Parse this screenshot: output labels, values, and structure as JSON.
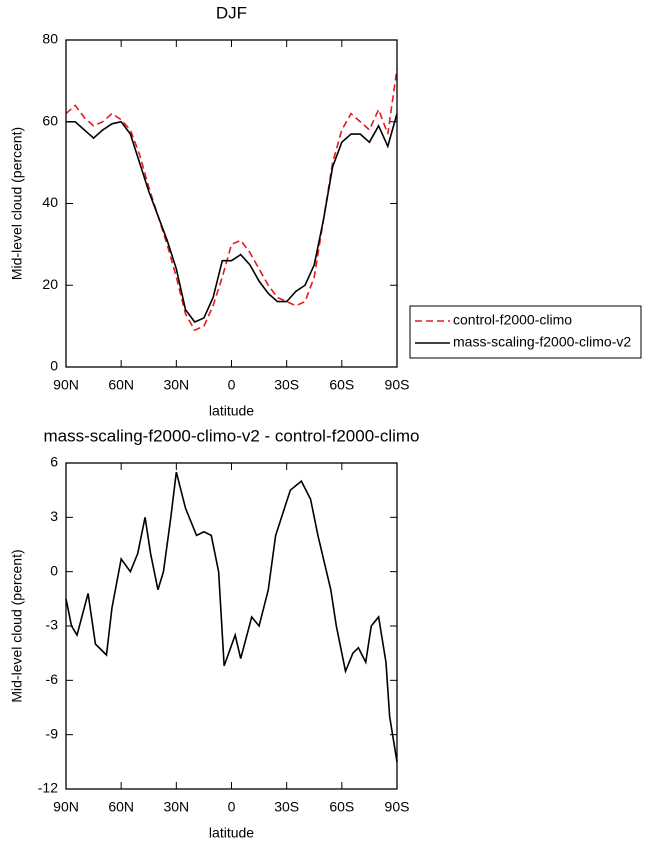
{
  "chart_data": [
    {
      "type": "line",
      "title": "DJF",
      "xlabel": "latitude",
      "ylabel": "Mid-level cloud (percent)",
      "x": [
        90,
        85,
        80,
        75,
        70,
        65,
        60,
        55,
        50,
        45,
        40,
        35,
        30,
        25,
        20,
        15,
        10,
        5,
        0,
        -5,
        -10,
        -15,
        -20,
        -25,
        -30,
        -35,
        -40,
        -45,
        -50,
        -55,
        -60,
        -65,
        -70,
        -75,
        -80,
        -85,
        -90
      ],
      "series": [
        {
          "name": "control-f2000-climo",
          "color": "#e41a1c",
          "style": "dashed",
          "values": [
            62,
            64,
            61,
            59,
            60,
            62,
            60.5,
            58,
            52,
            44,
            37,
            30,
            22,
            13,
            9,
            10,
            15,
            22,
            30,
            31,
            28,
            24,
            20,
            17,
            16,
            15,
            16,
            22,
            36,
            50,
            58,
            62,
            60,
            58,
            63,
            57,
            73
          ]
        },
        {
          "name": "mass-scaling-f2000-climo-v2",
          "color": "#000000",
          "style": "solid",
          "values": [
            60,
            60,
            58,
            56,
            58,
            59.5,
            60,
            57,
            50,
            43,
            37,
            31,
            24,
            14,
            11,
            12,
            17,
            26,
            26,
            27.5,
            25,
            21,
            18,
            16,
            16,
            18.5,
            20,
            25,
            36,
            49,
            55,
            57,
            57,
            55,
            59,
            54,
            62
          ]
        }
      ],
      "xlim": [
        90,
        -90
      ],
      "xticks": [
        {
          "value": 90,
          "label": "90N"
        },
        {
          "value": 60,
          "label": "60N"
        },
        {
          "value": 30,
          "label": "30N"
        },
        0,
        {
          "value": -30,
          "label": "30S"
        },
        {
          "value": -60,
          "label": "60S"
        },
        {
          "value": -90,
          "label": "90S"
        }
      ],
      "ylim": [
        0,
        80
      ],
      "yticks": [
        0,
        20,
        40,
        60,
        80
      ],
      "legend": "right"
    },
    {
      "type": "line",
      "title": "mass-scaling-f2000-climo-v2 - control-f2000-climo",
      "xlabel": "latitude",
      "ylabel": "Mid-level cloud (percent)",
      "x": [
        90,
        87,
        84,
        78,
        74,
        68,
        65,
        60,
        55,
        51,
        47,
        44,
        40,
        37,
        33,
        30,
        25,
        19,
        15,
        11,
        7,
        4,
        -2,
        -5,
        -11,
        -15,
        -20,
        -24,
        -32,
        -38,
        -43,
        -47,
        -54,
        -57,
        -62,
        -66,
        -69,
        -73,
        -76,
        -80,
        -84,
        -86,
        -90
      ],
      "values": [
        -1.5,
        -3,
        -3.5,
        -1.2,
        -4,
        -4.6,
        -2,
        0.7,
        0,
        1,
        3,
        1,
        -1,
        0,
        3,
        5.5,
        3.5,
        2,
        2.2,
        2,
        0,
        -5.2,
        -3.5,
        -4.8,
        -2.5,
        -3,
        -1,
        2,
        4.5,
        5,
        4,
        2,
        -1,
        -3,
        -5.5,
        -4.5,
        -4.2,
        -5,
        -3,
        -2.5,
        -5,
        -8,
        -10.5
      ],
      "color": "#000000",
      "xlim": [
        90,
        -90
      ],
      "xticks": [
        {
          "value": 90,
          "label": "90N"
        },
        {
          "value": 60,
          "label": "60N"
        },
        {
          "value": 30,
          "label": "30N"
        },
        0,
        {
          "value": -30,
          "label": "30S"
        },
        {
          "value": -60,
          "label": "60S"
        },
        {
          "value": -90,
          "label": "90S"
        }
      ],
      "ylim": [
        -12,
        6
      ],
      "yticks": [
        -12,
        -9,
        -6,
        -3,
        0,
        3,
        6
      ]
    }
  ]
}
